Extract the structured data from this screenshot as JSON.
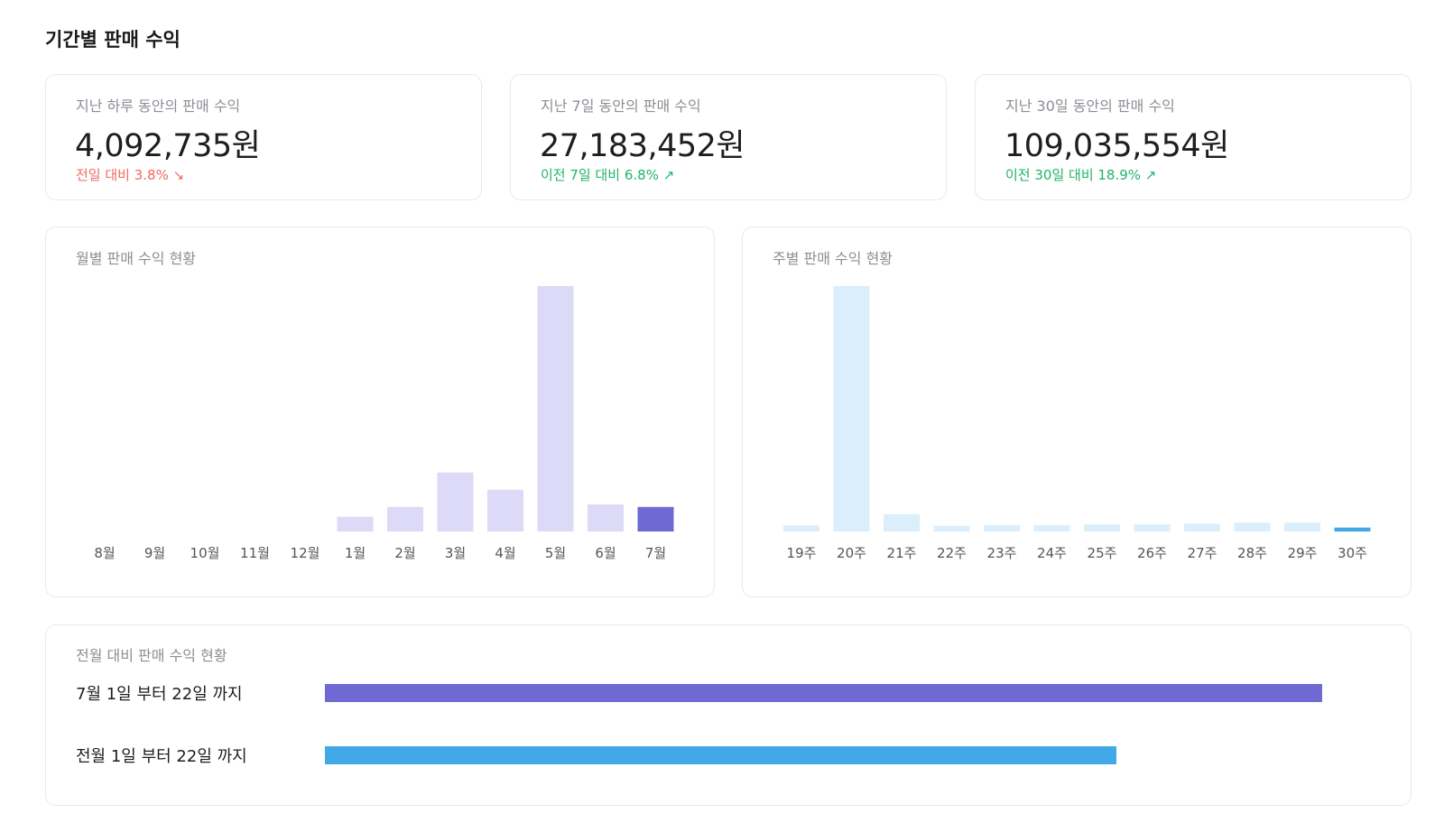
{
  "page": {
    "title": "기간별 판매 수익"
  },
  "stats": [
    {
      "label": "지난 하루 동안의 판매 수익",
      "value": "4,092,735원",
      "change": "전일 대비 3.8% ↘",
      "direction": "down"
    },
    {
      "label": "지난 7일 동안의 판매 수익",
      "value": "27,183,452원",
      "change": "이전 7일 대비 6.8% ↗",
      "direction": "up"
    },
    {
      "label": "지난 30일 동안의 판매 수익",
      "value": "109,035,554원",
      "change": "이전 30일 대비 18.9% ↗",
      "direction": "up"
    }
  ],
  "colors": {
    "change_down": "#ee6a61",
    "change_up": "#22b36b",
    "monthly_bar": "#dcdaf6",
    "monthly_highlight": "#6e69d3",
    "weekly_bar": "#dbeefb",
    "weekly_highlight": "#43a8e6",
    "axis_text": "#555555"
  },
  "chart_data": [
    {
      "type": "bar",
      "title": "월별 판매 수익 현황",
      "categories": [
        "8월",
        "9월",
        "10월",
        "11월",
        "12월",
        "1월",
        "2월",
        "3월",
        "4월",
        "5월",
        "6월",
        "7월"
      ],
      "values": [
        0,
        0,
        0,
        0,
        0,
        6,
        10,
        24,
        17,
        100,
        11,
        10
      ],
      "highlight_index": 11,
      "ylim": [
        0,
        100
      ],
      "grid": false,
      "legend": "none"
    },
    {
      "type": "bar",
      "title": "주별 판매 수익 현황",
      "categories": [
        "19주",
        "20주",
        "21주",
        "22주",
        "23주",
        "24주",
        "25주",
        "26주",
        "27주",
        "28주",
        "29주",
        "30주"
      ],
      "values": [
        2.5,
        100,
        7,
        2.3,
        2.6,
        2.6,
        2.9,
        2.9,
        3.2,
        3.6,
        3.6,
        1.6
      ],
      "highlight_index": 11,
      "ylim": [
        0,
        100
      ],
      "grid": false,
      "legend": "none"
    },
    {
      "type": "bar",
      "orientation": "horizontal",
      "title": "전월 대비 판매 수익 현황",
      "categories": [
        "7월 1일 부터 22일 까지",
        "전월 1일 부터 22일 까지"
      ],
      "values": [
        100,
        79.4
      ],
      "ylim": [
        0,
        100
      ],
      "grid": false,
      "legend": "none"
    }
  ]
}
